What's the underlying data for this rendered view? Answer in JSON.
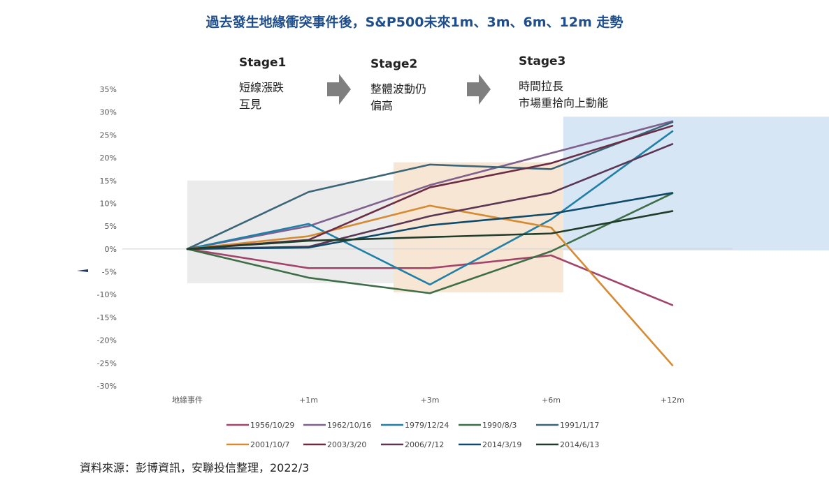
{
  "chart_data": {
    "type": "line",
    "title": "過去發生地緣衝突事件後，S&P500未來1m、3m、6m、12m 走勢",
    "categories": [
      "地緣事件",
      "+1m",
      "+3m",
      "+6m",
      "+12m"
    ],
    "ylim": [
      -30,
      35
    ],
    "yticks": [
      "35%",
      "30%",
      "25%",
      "20%",
      "15%",
      "10%",
      "5%",
      "0%",
      "-5%",
      "-10%",
      "-15%",
      "-20%",
      "-25%",
      "-30%"
    ],
    "legend_position": "bottom",
    "stages": [
      {
        "title": "Stage1",
        "lines": [
          "短線漲跌",
          "互見"
        ],
        "color": "#ebebeb",
        "range": [
          0,
          1.7
        ],
        "y_range": [
          -7.5,
          15
        ]
      },
      {
        "title": "Stage2",
        "lines": [
          "整體波動仍",
          "偏高"
        ],
        "color": "#f7e6d3",
        "range": [
          1.7,
          3.1
        ],
        "y_range": [
          -9.5,
          19
        ]
      },
      {
        "title": "Stage3",
        "lines": [
          "時間拉長",
          "市場重拾向上動能"
        ],
        "color": "#d6e6f5",
        "range": [
          3.1,
          5.4
        ],
        "y_range": [
          -0.3,
          29
        ]
      }
    ],
    "series": [
      {
        "name": "1956/10/29",
        "color": "#a3456a",
        "values": [
          0,
          -4.2,
          -4.2,
          -1.4,
          -12.3
        ]
      },
      {
        "name": "1962/10/16",
        "color": "#80608f",
        "values": [
          0,
          5.0,
          14.0,
          21.0,
          28.0
        ]
      },
      {
        "name": "1979/12/24",
        "color": "#1f7fa6",
        "values": [
          0,
          5.5,
          -7.8,
          6.5,
          25.8
        ]
      },
      {
        "name": "1990/8/3",
        "color": "#3e6e47",
        "values": [
          0,
          -6.3,
          -9.7,
          -0.5,
          12.2
        ]
      },
      {
        "name": "1991/1/17",
        "color": "#3a6578",
        "values": [
          0,
          12.5,
          18.5,
          17.5,
          27.8
        ]
      },
      {
        "name": "2001/10/7",
        "color": "#d58b34",
        "values": [
          0,
          2.8,
          9.5,
          4.7,
          -25.5
        ]
      },
      {
        "name": "2003/3/20",
        "color": "#6b2c45",
        "values": [
          0,
          2.0,
          13.5,
          18.8,
          27.0
        ]
      },
      {
        "name": "2006/7/12",
        "color": "#5a3654",
        "values": [
          0,
          0.5,
          7.2,
          12.3,
          23.0
        ]
      },
      {
        "name": "2014/3/19",
        "color": "#0f4a6b",
        "values": [
          0,
          0.3,
          5.2,
          7.7,
          12.3
        ]
      },
      {
        "name": "2014/6/13",
        "color": "#1f3d2a",
        "values": [
          0,
          1.8,
          2.6,
          3.4,
          8.3
        ]
      }
    ]
  },
  "source_note": "資料來源：彭博資訊，安聯投信整理，2022/3"
}
